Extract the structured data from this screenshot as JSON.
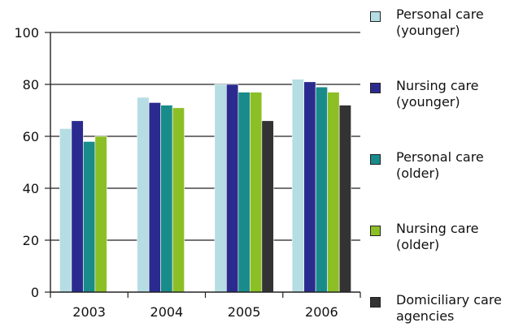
{
  "chart_data": {
    "type": "bar",
    "title": "",
    "xlabel": "",
    "ylabel": "",
    "ylim": [
      0,
      100
    ],
    "yticks": [
      0,
      20,
      40,
      60,
      80,
      100
    ],
    "categories": [
      "2003",
      "2004",
      "2005",
      "2006"
    ],
    "grid": "horizontal",
    "legend_position": "right",
    "series": [
      {
        "name": "Personal care\n(younger)",
        "color": "#b5dde3",
        "values": [
          63,
          75,
          80,
          82
        ]
      },
      {
        "name": "Nursing care\n(younger)",
        "color": "#2b2b8f",
        "values": [
          66,
          73,
          80,
          81
        ]
      },
      {
        "name": "Personal care\n(older)",
        "color": "#1a8b8b",
        "values": [
          58,
          72,
          77,
          79
        ]
      },
      {
        "name": "Nursing care\n(older)",
        "color": "#8cbf26",
        "values": [
          60,
          71,
          77,
          77
        ]
      },
      {
        "name": "Domiciliary care\nagencies",
        "color": "#333333",
        "values": [
          null,
          null,
          66,
          72
        ]
      }
    ]
  }
}
